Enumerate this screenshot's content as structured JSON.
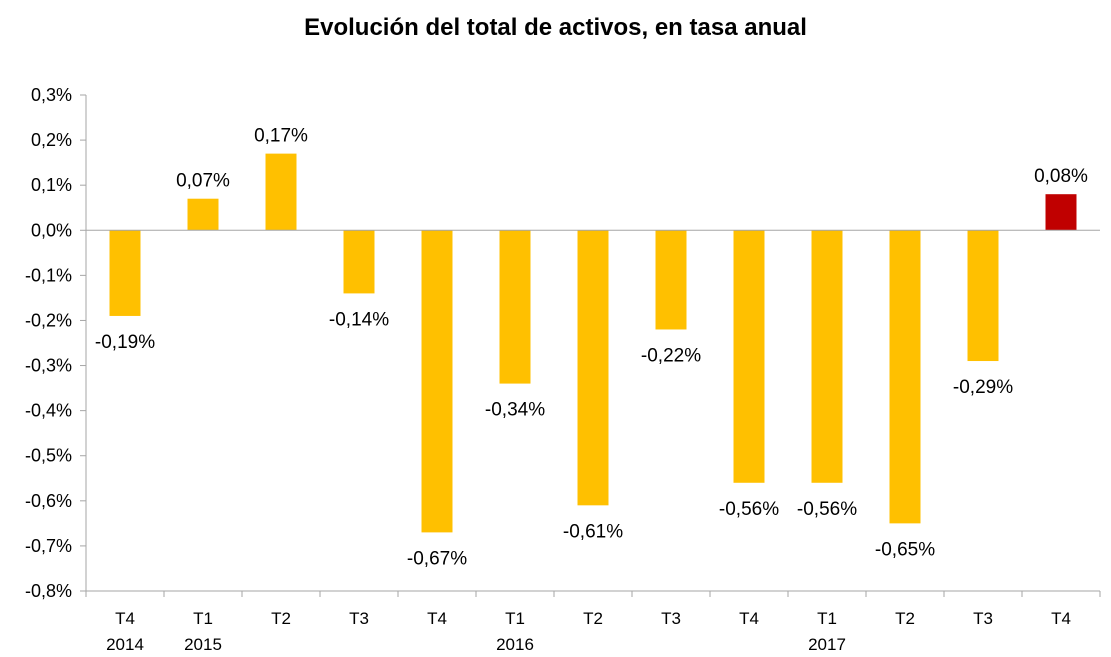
{
  "chart_data": {
    "type": "bar",
    "title": "Evolución del total de activos, en tasa anual",
    "xlabel": "",
    "ylabel": "",
    "ylim": [
      -0.8,
      0.3
    ],
    "y_ticks": [
      0.3,
      0.2,
      0.1,
      0.0,
      -0.1,
      -0.2,
      -0.3,
      -0.4,
      -0.5,
      -0.6,
      -0.7,
      -0.8
    ],
    "y_tick_labels": [
      "0,3%",
      "0,2%",
      "0,1%",
      "0,0%",
      "-0,1%",
      "-0,2%",
      "-0,3%",
      "-0,4%",
      "-0,5%",
      "-0,6%",
      "-0,7%",
      "-0,8%"
    ],
    "grid": false,
    "categories": [
      {
        "quarter": "T4",
        "year": "2014"
      },
      {
        "quarter": "T1",
        "year": "2015"
      },
      {
        "quarter": "T2",
        "year": ""
      },
      {
        "quarter": "T3",
        "year": ""
      },
      {
        "quarter": "T4",
        "year": ""
      },
      {
        "quarter": "T1",
        "year": "2016"
      },
      {
        "quarter": "T2",
        "year": ""
      },
      {
        "quarter": "T3",
        "year": ""
      },
      {
        "quarter": "T4",
        "year": ""
      },
      {
        "quarter": "T1",
        "year": "2017"
      },
      {
        "quarter": "T2",
        "year": ""
      },
      {
        "quarter": "T3",
        "year": ""
      },
      {
        "quarter": "T4",
        "year": ""
      }
    ],
    "values": [
      -0.19,
      0.07,
      0.17,
      -0.14,
      -0.67,
      -0.34,
      -0.61,
      -0.22,
      -0.56,
      -0.56,
      -0.65,
      -0.29,
      0.08
    ],
    "value_labels": [
      "-0,19%",
      "0,07%",
      "0,17%",
      "-0,14%",
      "-0,67%",
      "-0,34%",
      "-0,61%",
      "-0,22%",
      "-0,56%",
      "-0,56%",
      "-0,65%",
      "-0,29%",
      "0,08%"
    ],
    "colors": {
      "default": "#FFC000",
      "highlight": "#C00000",
      "axis": "#A6A6A6"
    },
    "highlight_index": 12
  }
}
